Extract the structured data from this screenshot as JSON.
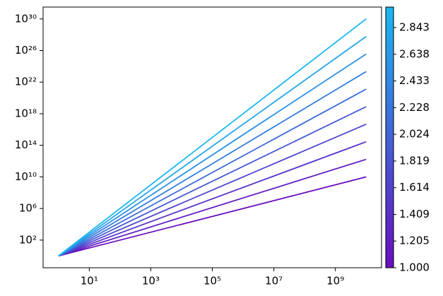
{
  "chart_data": {
    "type": "line",
    "xscale": "log",
    "yscale": "log",
    "x": [
      1,
      10000000000
    ],
    "series": [
      {
        "color": "#6a0dbf",
        "values": [
          1,
          10000000000.0
        ]
      },
      {
        "color": "#6120c4",
        "values": [
          1,
          1668000000000.0
        ]
      },
      {
        "color": "#5833ca",
        "values": [
          1,
          278000000000000.0
        ]
      },
      {
        "color": "#4f46cf",
        "values": [
          1,
          4.64e+16
        ]
      },
      {
        "color": "#4659d5",
        "values": [
          1,
          7.74e+18
        ]
      },
      {
        "color": "#3e6cda",
        "values": [
          1,
          1.29e+21
        ]
      },
      {
        "color": "#357fdf",
        "values": [
          1,
          2.15e+23
        ]
      },
      {
        "color": "#2c92e5",
        "values": [
          1,
          3.59e+25
        ]
      },
      {
        "color": "#23a5ea",
        "values": [
          1,
          5.99e+27
        ]
      },
      {
        "color": "#1ab8f0",
        "values": [
          1,
          1e+30
        ]
      }
    ],
    "xlim": [
      0.316,
      31600000000
    ],
    "ylim": [
      0.0316,
      3.16e+31
    ],
    "xticks": [
      {
        "value": 10,
        "label": "10¹"
      },
      {
        "value": 1000,
        "label": "10³"
      },
      {
        "value": 100000,
        "label": "10⁵"
      },
      {
        "value": 10000000,
        "label": "10⁷"
      },
      {
        "value": 1000000000,
        "label": "10⁹"
      }
    ],
    "yticks": [
      {
        "value": 100,
        "label": "10²"
      },
      {
        "value": 1000000,
        "label": "10⁶"
      },
      {
        "value": 10000000000.0,
        "label": "10¹⁰"
      },
      {
        "value": 100000000000000.0,
        "label": "10¹⁴"
      },
      {
        "value": 1e+18,
        "label": "10¹⁸"
      },
      {
        "value": 1e+22,
        "label": "10²²"
      },
      {
        "value": 1e+26,
        "label": "10²⁶"
      },
      {
        "value": 1e+30,
        "label": "10³⁰"
      }
    ],
    "colorbar": {
      "lim": [
        1,
        3
      ],
      "colors": [
        "#6a0dbf",
        "#1ab8f0"
      ],
      "ticks": [
        {
          "value": 1,
          "label": "1.000"
        },
        {
          "value": 1.205,
          "label": "1.205"
        },
        {
          "value": 1.409,
          "label": "1.409"
        },
        {
          "value": 1.614,
          "label": "1.614"
        },
        {
          "value": 1.819,
          "label": "1.819"
        },
        {
          "value": 2.024,
          "label": "2.024"
        },
        {
          "value": 2.228,
          "label": "2.228"
        },
        {
          "value": 2.433,
          "label": "2.433"
        },
        {
          "value": 2.638,
          "label": "2.638"
        },
        {
          "value": 2.843,
          "label": "2.843"
        }
      ]
    }
  }
}
